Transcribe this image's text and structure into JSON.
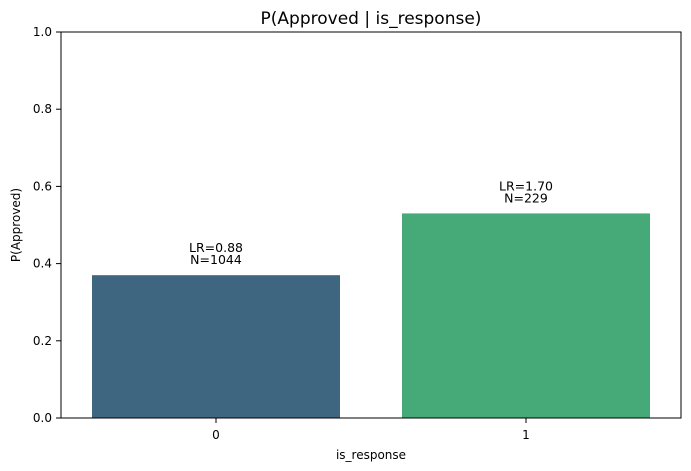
{
  "chart_data": {
    "type": "bar",
    "title": "P(Approved | is_response)",
    "xlabel": "is_response",
    "ylabel": "P(Approved)",
    "ylim": [
      0,
      1.0
    ],
    "yticks": [
      "0.0",
      "0.2",
      "0.4",
      "0.6",
      "0.8",
      "1.0"
    ],
    "categories": [
      "0",
      "1"
    ],
    "values": [
      0.37,
      0.53
    ],
    "annotations": [
      {
        "lr": "LR=0.88",
        "n": "N=1044"
      },
      {
        "lr": "LR=1.70",
        "n": "N=229"
      }
    ],
    "colors": [
      "#3e6681",
      "#46a978"
    ],
    "grid": false,
    "legend": "none"
  }
}
